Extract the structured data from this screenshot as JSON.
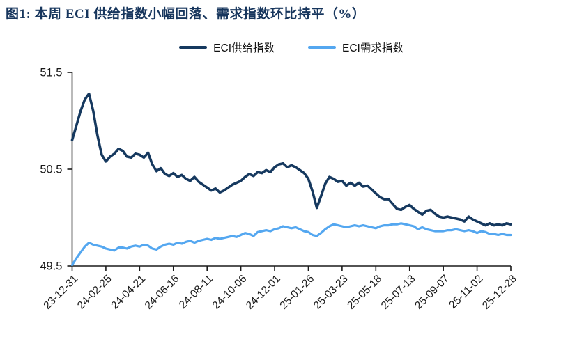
{
  "title": "图1:  本周 ECI 供给指数小幅回落、需求指数环比持平（%）",
  "colors": {
    "title_text": "#17365D",
    "supply_line": "#16395F",
    "demand_line": "#54A7F0",
    "axis": "#1a1a1a",
    "tick_text": "#1a1a1a",
    "background": "#ffffff"
  },
  "legend": {
    "items": [
      {
        "label": "ECI供给指数",
        "color": "#16395F"
      },
      {
        "label": "ECI需求指数",
        "color": "#54A7F0"
      }
    ]
  },
  "chart_data": {
    "type": "line",
    "title": "本周ECI供给指数小幅回落、需求指数环比持平（%）",
    "xlabel": "",
    "ylabel": "",
    "ylim": [
      49.5,
      51.5
    ],
    "y_ticks": [
      49.5,
      50.5,
      51.5
    ],
    "grid": false,
    "legend_position": "top-center",
    "x_interval": "weekly",
    "x_tick_labels": [
      "23-12-31",
      "24-02-25",
      "24-04-21",
      "24-06-16",
      "24-08-11",
      "24-10-06",
      "24-12-01",
      "25-01-26",
      "25-03-23",
      "25-05-18",
      "25-07-13",
      "25-09-07",
      "25-11-02",
      "25-12-28"
    ],
    "x_tick_positions": [
      0,
      8,
      16,
      24,
      32,
      40,
      48,
      56,
      64,
      72,
      80,
      88,
      96,
      104
    ],
    "series": [
      {
        "name": "ECI供给指数",
        "color": "#16395F",
        "values": [
          50.8,
          50.95,
          51.1,
          51.22,
          51.28,
          51.1,
          50.85,
          50.65,
          50.58,
          50.63,
          50.66,
          50.71,
          50.69,
          50.63,
          50.62,
          50.66,
          50.65,
          50.62,
          50.67,
          50.55,
          50.48,
          50.51,
          50.45,
          50.43,
          50.46,
          50.42,
          50.44,
          50.4,
          50.38,
          50.42,
          50.37,
          50.34,
          50.31,
          50.28,
          50.3,
          50.26,
          50.28,
          50.31,
          50.34,
          50.36,
          50.38,
          50.42,
          50.45,
          50.43,
          50.47,
          50.46,
          50.49,
          50.47,
          50.52,
          50.55,
          50.56,
          50.52,
          50.54,
          50.52,
          50.49,
          50.46,
          50.4,
          50.27,
          50.1,
          50.22,
          50.35,
          50.42,
          50.4,
          50.37,
          50.38,
          50.33,
          50.36,
          50.33,
          50.36,
          50.32,
          50.33,
          50.29,
          50.25,
          50.21,
          50.19,
          50.19,
          50.14,
          50.09,
          50.08,
          50.11,
          50.13,
          50.09,
          50.06,
          50.03,
          50.07,
          50.08,
          50.04,
          50.01,
          50.0,
          50.01,
          50.0,
          49.99,
          49.98,
          49.96,
          50.01,
          49.98,
          49.96,
          49.94,
          49.92,
          49.94,
          49.92,
          49.93,
          49.92,
          49.94,
          49.93
        ]
      },
      {
        "name": "ECI需求指数",
        "color": "#54A7F0",
        "values": [
          49.51,
          49.58,
          49.64,
          49.7,
          49.74,
          49.72,
          49.71,
          49.7,
          49.68,
          49.67,
          49.66,
          49.69,
          49.69,
          49.68,
          49.7,
          49.71,
          49.7,
          49.72,
          49.71,
          49.68,
          49.67,
          49.7,
          49.72,
          49.73,
          49.72,
          49.74,
          49.73,
          49.75,
          49.76,
          49.74,
          49.76,
          49.77,
          49.78,
          49.77,
          49.79,
          49.78,
          49.79,
          49.8,
          49.81,
          49.8,
          49.82,
          49.84,
          49.83,
          49.81,
          49.85,
          49.86,
          49.87,
          49.86,
          49.88,
          49.89,
          49.91,
          49.9,
          49.89,
          49.9,
          49.88,
          49.86,
          49.85,
          49.82,
          49.81,
          49.84,
          49.88,
          49.91,
          49.93,
          49.92,
          49.91,
          49.9,
          49.91,
          49.92,
          49.91,
          49.92,
          49.91,
          49.9,
          49.89,
          49.91,
          49.92,
          49.92,
          49.93,
          49.93,
          49.94,
          49.93,
          49.92,
          49.91,
          49.88,
          49.9,
          49.88,
          49.87,
          49.86,
          49.86,
          49.86,
          49.87,
          49.87,
          49.88,
          49.87,
          49.86,
          49.87,
          49.86,
          49.84,
          49.86,
          49.85,
          49.83,
          49.83,
          49.82,
          49.83,
          49.82,
          49.82
        ]
      }
    ]
  }
}
